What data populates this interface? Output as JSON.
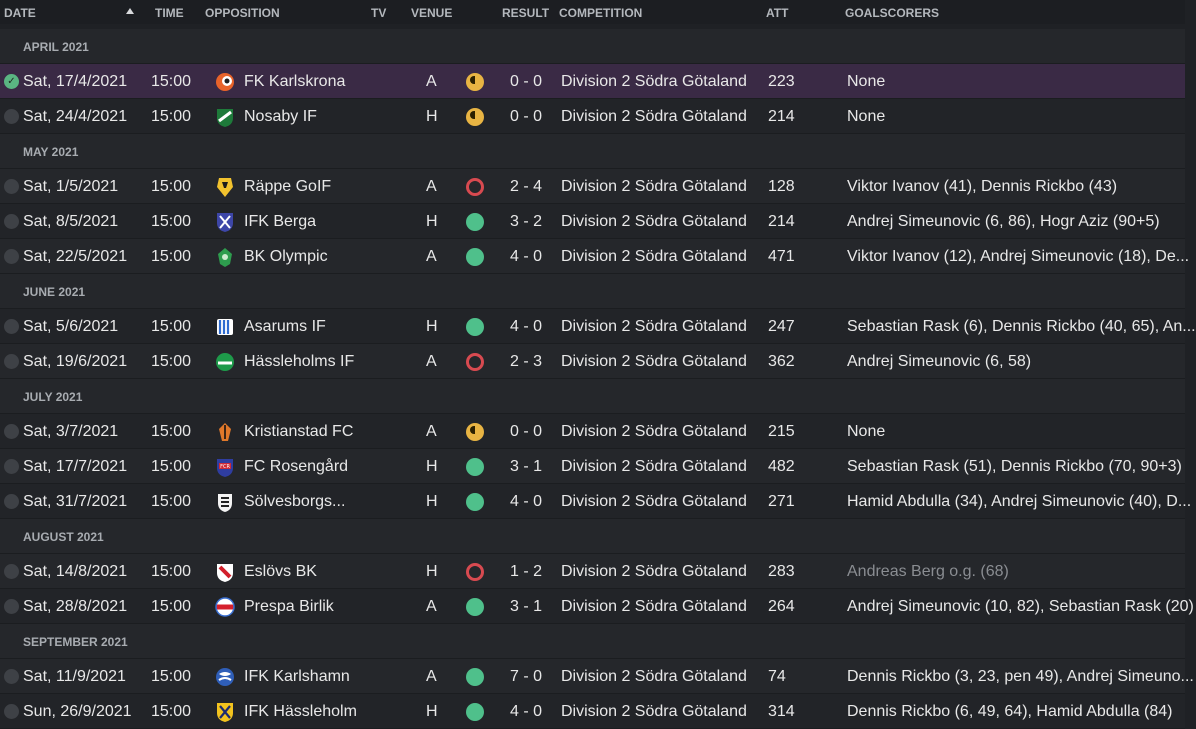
{
  "columns": {
    "date": "DATE",
    "time": "TIME",
    "opposition": "OPPOSITION",
    "tv": "TV",
    "venue": "VENUE",
    "result": "RESULT",
    "competition": "COMPETITION",
    "att": "ATT",
    "goalscorers": "GOALSCORERS"
  },
  "sort_column": "date",
  "groups": [
    {
      "month": "APRIL 2021",
      "matches": [
        {
          "date": "Sat, 17/4/2021",
          "time": "15:00",
          "opposition": "FK Karlskrona",
          "venue": "A",
          "outcome": "draw",
          "result": "0 - 0",
          "competition": "Division 2 Södra Götaland",
          "att": "223",
          "scorers": "None",
          "badge": "karlskrona-badge",
          "selected": true
        },
        {
          "date": "Sat, 24/4/2021",
          "time": "15:00",
          "opposition": "Nosaby IF",
          "venue": "H",
          "outcome": "draw",
          "result": "0 - 0",
          "competition": "Division 2 Södra Götaland",
          "att": "214",
          "scorers": "None",
          "badge": "nosaby-badge"
        }
      ]
    },
    {
      "month": "MAY 2021",
      "matches": [
        {
          "date": "Sat, 1/5/2021",
          "time": "15:00",
          "opposition": "Räppe GoIF",
          "venue": "A",
          "outcome": "loss",
          "result": "2 - 4",
          "competition": "Division 2 Södra Götaland",
          "att": "128",
          "scorers": "Viktor Ivanov (41), Dennis Rickbo (43)",
          "badge": "rappe-badge"
        },
        {
          "date": "Sat, 8/5/2021",
          "time": "15:00",
          "opposition": "IFK Berga",
          "venue": "H",
          "outcome": "win",
          "result": "3 - 2",
          "competition": "Division 2 Södra Götaland",
          "att": "214",
          "scorers": "Andrej Simeunovic (6, 86), Hogr Aziz (90+5)",
          "badge": "berga-badge"
        },
        {
          "date": "Sat, 22/5/2021",
          "time": "15:00",
          "opposition": "BK Olympic",
          "venue": "A",
          "outcome": "win",
          "result": "4 - 0",
          "competition": "Division 2 Södra Götaland",
          "att": "471",
          "scorers": "Viktor Ivanov (12), Andrej Simeunovic (18), De...",
          "badge": "olympic-badge"
        }
      ]
    },
    {
      "month": "JUNE 2021",
      "matches": [
        {
          "date": "Sat, 5/6/2021",
          "time": "15:00",
          "opposition": "Asarums IF",
          "venue": "H",
          "outcome": "win",
          "result": "4 - 0",
          "competition": "Division 2 Södra Götaland",
          "att": "247",
          "scorers": "Sebastian Rask (6), Dennis Rickbo (40, 65), An...",
          "badge": "asarum-badge"
        },
        {
          "date": "Sat, 19/6/2021",
          "time": "15:00",
          "opposition": "Hässleholms IF",
          "venue": "A",
          "outcome": "loss",
          "result": "2 - 3",
          "competition": "Division 2 Södra Götaland",
          "att": "362",
          "scorers": "Andrej Simeunovic (6, 58)",
          "badge": "hassleholms-badge"
        }
      ]
    },
    {
      "month": "JULY 2021",
      "matches": [
        {
          "date": "Sat, 3/7/2021",
          "time": "15:00",
          "opposition": "Kristianstad FC",
          "venue": "A",
          "outcome": "draw",
          "result": "0 - 0",
          "competition": "Division 2 Södra Götaland",
          "att": "215",
          "scorers": "None",
          "badge": "kristianstad-badge"
        },
        {
          "date": "Sat, 17/7/2021",
          "time": "15:00",
          "opposition": "FC Rosengård",
          "venue": "H",
          "outcome": "win",
          "result": "3 - 1",
          "competition": "Division 2 Södra Götaland",
          "att": "482",
          "scorers": "Sebastian Rask (51), Dennis Rickbo (70, 90+3)",
          "badge": "rosengard-badge"
        },
        {
          "date": "Sat, 31/7/2021",
          "time": "15:00",
          "opposition": "Sölvesborgs...",
          "venue": "H",
          "outcome": "win",
          "result": "4 - 0",
          "competition": "Division 2 Södra Götaland",
          "att": "271",
          "scorers": "Hamid Abdulla (34), Andrej Simeunovic (40), D...",
          "badge": "solvesborg-badge"
        }
      ]
    },
    {
      "month": "AUGUST 2021",
      "matches": [
        {
          "date": "Sat, 14/8/2021",
          "time": "15:00",
          "opposition": "Eslövs BK",
          "venue": "H",
          "outcome": "loss",
          "result": "1 - 2",
          "competition": "Division 2 Södra Götaland",
          "att": "283",
          "scorers": "Andreas Berg o.g. (68)",
          "scorers_og": true,
          "badge": "eslov-badge"
        },
        {
          "date": "Sat, 28/8/2021",
          "time": "15:00",
          "opposition": "Prespa Birlik",
          "venue": "A",
          "outcome": "win",
          "result": "3 - 1",
          "competition": "Division 2 Södra Götaland",
          "att": "264",
          "scorers": "Andrej Simeunovic (10, 82), Sebastian Rask (20)",
          "badge": "prespa-badge"
        }
      ]
    },
    {
      "month": "SEPTEMBER 2021",
      "matches": [
        {
          "date": "Sat, 11/9/2021",
          "time": "15:00",
          "opposition": "IFK Karlshamn",
          "venue": "A",
          "outcome": "win",
          "result": "7 - 0",
          "competition": "Division 2 Södra Götaland",
          "att": "74",
          "scorers": "Dennis Rickbo (3, 23, pen 49), Andrej Simeuno...",
          "badge": "karlshamn-badge"
        },
        {
          "date": "Sun, 26/9/2021",
          "time": "15:00",
          "opposition": "IFK Hässleholm",
          "venue": "H",
          "outcome": "win",
          "result": "4 - 0",
          "competition": "Division 2 Södra Götaland",
          "att": "314",
          "scorers": "Dennis Rickbo (6, 49, 64), Hamid Abdulla (84)",
          "badge": "ifk-hassleholm-badge"
        }
      ]
    }
  ],
  "colors": {
    "win": "#4fc08b",
    "loss": "#d84a50",
    "draw": "#e8b443",
    "selected_row": "#3a2a45",
    "background": "#1f2125"
  }
}
